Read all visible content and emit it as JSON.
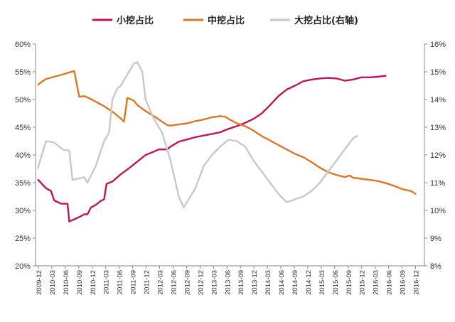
{
  "chart_data": {
    "type": "line",
    "title": "",
    "legend_position": "top",
    "grid": false,
    "x": [
      "2009-12",
      "2010-03",
      "2010-06",
      "2010-09",
      "2010-12",
      "2011-03",
      "2011-06",
      "2011-09",
      "2011-12",
      "2012-03",
      "2012-06",
      "2012-09",
      "2012-12",
      "2013-03",
      "2013-06",
      "2013-09",
      "2013-12",
      "2014-03",
      "2014-06",
      "2014-09",
      "2014-12",
      "2015-03",
      "2015-06",
      "2015-09",
      "2015-12",
      "2016-03",
      "2016-06",
      "2016-09",
      "2016-12"
    ],
    "x_axis_labels": [
      "2009-12",
      "2010-03",
      "2010-06",
      "2010-09",
      "2010-12",
      "2011-03",
      "2011-06",
      "2011-09",
      "2011-12",
      "2012-03",
      "2012-06",
      "2012-09",
      "2012-12",
      "2013-03",
      "2013-06",
      "2013-09",
      "2013-12",
      "2014-03",
      "2014-06",
      "2014-09",
      "2014-12",
      "2015-03",
      "2015-06",
      "2015-09",
      "2015-12",
      "2016-03",
      "2016-06",
      "2016-09",
      "2016-12"
    ],
    "y_left": {
      "ylim": [
        20,
        60
      ],
      "ticks": [
        "20%",
        "25%",
        "30%",
        "35%",
        "40%",
        "45%",
        "50%",
        "55%",
        "60%"
      ],
      "tick_values": [
        20,
        25,
        30,
        35,
        40,
        45,
        50,
        55,
        60
      ]
    },
    "y_right": {
      "ylim": [
        8,
        16
      ],
      "ticks": [
        "8%",
        "9%",
        "10%",
        "11%",
        "12%",
        "13%",
        "14%",
        "15%",
        "16%"
      ],
      "tick_values": [
        8,
        9,
        10,
        11,
        12,
        13,
        14,
        15,
        16
      ]
    },
    "series": [
      {
        "name": "小挖占比",
        "color": "#c0135a",
        "axis": "left",
        "points": [
          [
            0,
            35.6
          ],
          [
            1,
            34
          ],
          [
            1.6,
            33.5
          ],
          [
            2,
            31.8
          ],
          [
            2.8,
            31.2
          ],
          [
            3.6,
            31.2
          ],
          [
            3.8,
            28
          ],
          [
            5,
            28.8
          ],
          [
            5.6,
            29.3
          ],
          [
            6,
            29.3
          ],
          [
            6.4,
            30.5
          ],
          [
            7,
            31
          ],
          [
            7.6,
            31.7
          ],
          [
            8,
            32
          ],
          [
            8.3,
            34.8
          ],
          [
            9,
            35.2
          ],
          [
            10,
            36.5
          ],
          [
            11,
            37.6
          ],
          [
            12,
            38.8
          ],
          [
            13,
            40
          ],
          [
            14,
            40.6
          ],
          [
            14.6,
            41
          ],
          [
            15,
            41
          ],
          [
            15.6,
            41
          ],
          [
            16,
            41.5
          ],
          [
            17,
            42.4
          ],
          [
            18,
            42.8
          ],
          [
            19,
            43.2
          ],
          [
            20,
            43.5
          ],
          [
            21,
            43.8
          ],
          [
            22,
            44.1
          ],
          [
            23,
            44.7
          ],
          [
            24,
            45.2
          ],
          [
            25,
            45.8
          ],
          [
            26,
            46.5
          ],
          [
            27,
            47.5
          ],
          [
            28,
            49
          ],
          [
            29,
            50.6
          ],
          [
            30,
            51.8
          ],
          [
            31,
            52.5
          ],
          [
            32,
            53.3
          ],
          [
            33,
            53.6
          ],
          [
            34,
            53.8
          ],
          [
            35,
            53.9
          ],
          [
            36,
            53.8
          ],
          [
            37,
            53.4
          ],
          [
            38,
            53.6
          ],
          [
            39,
            54
          ],
          [
            40,
            54
          ],
          [
            41,
            54.1
          ],
          [
            42,
            54.3
          ]
        ]
      },
      {
        "name": "中挖占比",
        "color": "#e07524",
        "axis": "left",
        "points": [
          [
            0,
            52.6
          ],
          [
            0.5,
            53.2
          ],
          [
            1,
            53.7
          ],
          [
            2,
            54.1
          ],
          [
            3,
            54.5
          ],
          [
            3.8,
            54.9
          ],
          [
            4.4,
            55.1
          ],
          [
            5,
            50.5
          ],
          [
            5.6,
            50.6
          ],
          [
            6,
            50.4
          ],
          [
            7,
            49.6
          ],
          [
            8,
            48.8
          ],
          [
            9,
            47.8
          ],
          [
            10,
            46.6
          ],
          [
            10.4,
            46
          ],
          [
            10.8,
            50.3
          ],
          [
            11.6,
            49.8
          ],
          [
            12,
            49
          ],
          [
            13,
            47.9
          ],
          [
            14,
            47
          ],
          [
            15,
            46
          ],
          [
            15.6,
            45.4
          ],
          [
            16,
            45.3
          ],
          [
            17,
            45.5
          ],
          [
            18,
            45.7
          ],
          [
            19,
            46.1
          ],
          [
            20,
            46.4
          ],
          [
            21,
            46.8
          ],
          [
            22,
            47
          ],
          [
            22.6,
            46.9
          ],
          [
            23,
            46.5
          ],
          [
            24,
            45.7
          ],
          [
            25,
            45.2
          ],
          [
            26,
            44.4
          ],
          [
            27,
            43.4
          ],
          [
            28,
            42.6
          ],
          [
            29,
            41.8
          ],
          [
            30,
            41
          ],
          [
            31,
            40.2
          ],
          [
            32,
            39.6
          ],
          [
            33,
            38.7
          ],
          [
            34,
            37.7
          ],
          [
            35,
            36.9
          ],
          [
            36,
            36.4
          ],
          [
            37,
            36
          ],
          [
            37.6,
            36.3
          ],
          [
            38,
            35.9
          ],
          [
            39,
            35.7
          ],
          [
            40,
            35.5
          ],
          [
            41,
            35.3
          ],
          [
            42,
            34.9
          ],
          [
            43,
            34.4
          ],
          [
            44,
            33.8
          ],
          [
            45,
            33.5
          ],
          [
            45.6,
            32.9
          ]
        ]
      },
      {
        "name": "大挖占比(右轴)",
        "color": "#c8c8c8",
        "axis": "right",
        "points": [
          [
            0,
            11.5
          ],
          [
            1,
            12.5
          ],
          [
            2,
            12.45
          ],
          [
            3,
            12.2
          ],
          [
            3.8,
            12.15
          ],
          [
            4.2,
            11.1
          ],
          [
            5,
            11.15
          ],
          [
            5.6,
            11.2
          ],
          [
            6,
            11
          ],
          [
            7,
            11.6
          ],
          [
            8,
            12.5
          ],
          [
            8.6,
            12.8
          ],
          [
            9,
            14
          ],
          [
            9.6,
            14.4
          ],
          [
            10,
            14.5
          ],
          [
            11,
            15
          ],
          [
            11.6,
            15.3
          ],
          [
            12,
            15.35
          ],
          [
            12.6,
            15
          ],
          [
            13,
            14
          ],
          [
            14,
            13.3
          ],
          [
            15,
            12.8
          ],
          [
            16,
            11.8
          ],
          [
            17,
            10.5
          ],
          [
            17.6,
            10.1
          ],
          [
            18,
            10.3
          ],
          [
            19,
            10.8
          ],
          [
            20,
            11.6
          ],
          [
            21,
            12
          ],
          [
            22,
            12.3
          ],
          [
            23,
            12.55
          ],
          [
            24,
            12.5
          ],
          [
            25,
            12.3
          ],
          [
            26,
            11.8
          ],
          [
            27,
            11.4
          ],
          [
            28,
            11
          ],
          [
            29,
            10.6
          ],
          [
            30,
            10.3
          ],
          [
            30.6,
            10.35
          ],
          [
            31,
            10.4
          ],
          [
            32,
            10.5
          ],
          [
            33,
            10.7
          ],
          [
            34,
            11
          ],
          [
            35,
            11.4
          ],
          [
            36,
            11.8
          ],
          [
            37,
            12.2
          ],
          [
            38,
            12.6
          ],
          [
            38.6,
            12.7
          ]
        ]
      }
    ]
  }
}
